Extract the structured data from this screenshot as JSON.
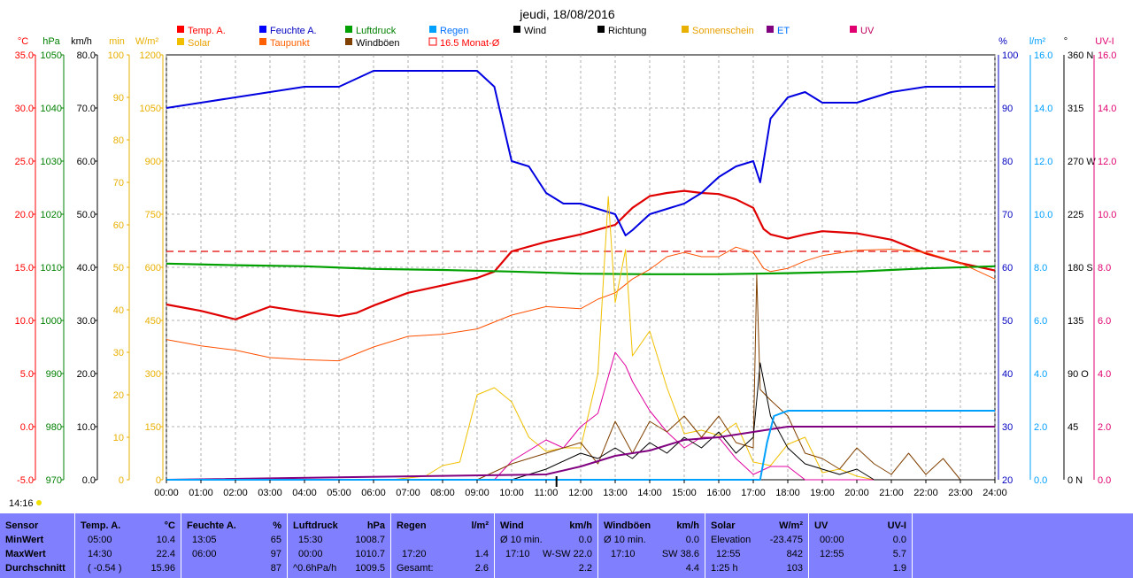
{
  "chart_data": {
    "type": "line",
    "title": "jeudi, 18/08/2016",
    "x_ticks": [
      "00:00",
      "01:00",
      "02:00",
      "03:00",
      "04:00",
      "05:00",
      "06:00",
      "07:00",
      "08:00",
      "09:00",
      "10:00",
      "11:00",
      "12:00",
      "13:00",
      "14:00",
      "15:00",
      "16:00",
      "17:00",
      "18:00",
      "19:00",
      "20:00",
      "21:00",
      "22:00",
      "23:00",
      "24:00"
    ],
    "left_axes": [
      {
        "unit": "°C",
        "color": "#ff0000",
        "ticks": [
          "35.0",
          "30.0",
          "25.0",
          "20.0",
          "15.0",
          "10.0",
          "5.0",
          "0.0",
          "-5.0"
        ]
      },
      {
        "unit": "hPa",
        "color": "#008000",
        "ticks": [
          "1050",
          "1040",
          "1030",
          "1020",
          "1010",
          "1000",
          "990",
          "980",
          "970"
        ]
      },
      {
        "unit": "km/h",
        "color": "#000000",
        "ticks": [
          "80.0",
          "70.0",
          "60.0",
          "50.0",
          "40.0",
          "30.0",
          "20.0",
          "10.0",
          "0.0"
        ]
      },
      {
        "unit": "min",
        "color": "#e8b000",
        "ticks": [
          "100",
          "90",
          "80",
          "70",
          "60",
          "50",
          "40",
          "30",
          "20",
          "10",
          "0"
        ]
      },
      {
        "unit": "W/m²",
        "color": "#e8b000",
        "ticks": [
          "1200",
          "1050",
          "900",
          "750",
          "600",
          "450",
          "300",
          "150",
          "0"
        ]
      }
    ],
    "right_axes": [
      {
        "unit": "%",
        "color": "#0000c0",
        "ticks": [
          "100",
          "90",
          "80",
          "70",
          "60",
          "50",
          "40",
          "30",
          "20"
        ]
      },
      {
        "unit": "l/m²",
        "color": "#00a0ff",
        "ticks": [
          "16.0",
          "14.0",
          "12.0",
          "10.0",
          "8.0",
          "6.0",
          "4.0",
          "2.0",
          "0.0"
        ]
      },
      {
        "unit": "°",
        "color": "#000000",
        "ticks": [
          "360 N",
          "315",
          "270 W",
          "225",
          "180 S",
          "135",
          "90 O",
          "45",
          "0 N"
        ]
      },
      {
        "unit": "UV-I",
        "color": "#e00070",
        "ticks": [
          "16.0",
          "14.0",
          "12.0",
          "10.0",
          "8.0",
          "6.0",
          "4.0",
          "2.0",
          "0.0"
        ]
      }
    ],
    "legend": [
      {
        "label": "Temp. A.",
        "color": "#ff0000"
      },
      {
        "label": "Feuchte A.",
        "color": "#0000ff"
      },
      {
        "label": "Luftdruck",
        "color": "#00a000"
      },
      {
        "label": "Regen",
        "color": "#00a0ff"
      },
      {
        "label": "Wind",
        "color": "#000000"
      },
      {
        "label": "Richtung",
        "color": "#000000"
      },
      {
        "label": "Sonnenschein",
        "color": "#e8b000"
      },
      {
        "label": "ET",
        "color": "#800080"
      },
      {
        "label": "UV",
        "color": "#e00070"
      },
      {
        "label": "Solar",
        "color": "#f0c000"
      },
      {
        "label": "Taupunkt",
        "color": "#ff6000"
      },
      {
        "label": "Windböen",
        "color": "#804000"
      },
      {
        "label": "16.5 Monat-Ø",
        "color": "#ff0000"
      }
    ],
    "monthly_avg_temp": 16.5,
    "current_time": "14:16",
    "series": [
      {
        "name": "Temp. A.",
        "unit": "°C",
        "x": [
          0,
          1,
          2,
          3,
          4,
          5,
          5.5,
          6,
          7,
          8,
          9,
          9.5,
          10,
          11,
          12,
          13,
          13.5,
          14,
          14.5,
          15,
          15.5,
          16,
          16.5,
          17,
          17.3,
          17.5,
          18,
          18.5,
          19,
          19.5,
          20,
          21,
          22,
          23,
          24
        ],
        "y": [
          11.5,
          10.9,
          10.1,
          11.3,
          10.8,
          10.4,
          10.7,
          11.4,
          12.6,
          13.3,
          14.0,
          14.6,
          16.5,
          17.4,
          18.1,
          19.0,
          20.6,
          21.7,
          22.0,
          22.2,
          22.0,
          21.9,
          21.4,
          20.6,
          18.6,
          18.1,
          17.7,
          18.1,
          18.4,
          18.3,
          18.2,
          17.6,
          16.3,
          15.4,
          14.7
        ]
      },
      {
        "name": "Feuchte A.",
        "unit": "%",
        "x": [
          0,
          1,
          2,
          3,
          4,
          5,
          6,
          7,
          8,
          9,
          9.5,
          10,
          10.5,
          11,
          11.5,
          12,
          12.5,
          13,
          13.3,
          13.5,
          14,
          14.5,
          15,
          15.5,
          16,
          16.5,
          17,
          17.2,
          17.5,
          18,
          18.5,
          19,
          20,
          21,
          22,
          23,
          24
        ],
        "y": [
          90,
          91,
          92,
          93,
          94,
          94,
          97,
          97,
          97,
          97,
          94,
          80,
          79,
          74,
          72,
          72,
          71,
          70,
          66,
          67,
          70,
          71,
          72,
          74,
          77,
          79,
          80,
          76,
          88,
          92,
          93,
          91,
          91,
          93,
          94,
          94,
          94
        ]
      },
      {
        "name": "Luftdruck",
        "unit": "hPa",
        "x": [
          0,
          2,
          4,
          6,
          8,
          10,
          12,
          14,
          16,
          18,
          20,
          22,
          24
        ],
        "y": [
          1010.7,
          1010.4,
          1010.2,
          1009.7,
          1009.5,
          1009.2,
          1008.8,
          1008.7,
          1008.7,
          1008.9,
          1009.2,
          1009.8,
          1010.2
        ]
      },
      {
        "name": "Taupunkt",
        "unit": "°C",
        "x": [
          0,
          1,
          2,
          3,
          4,
          5,
          6,
          7,
          8,
          9,
          10,
          11,
          12,
          12.5,
          13,
          13.5,
          14,
          14.5,
          15,
          15.5,
          16,
          16.5,
          17,
          17.3,
          17.5,
          18,
          18.5,
          19,
          20,
          21,
          22,
          23,
          24
        ],
        "y": [
          8.2,
          7.6,
          7.2,
          6.5,
          6.3,
          6.2,
          7.5,
          8.5,
          8.7,
          9.2,
          10.5,
          11.3,
          11.1,
          12.0,
          12.6,
          13.9,
          14.8,
          16.0,
          16.4,
          16.0,
          16.0,
          16.9,
          16.4,
          14.9,
          14.6,
          14.9,
          15.6,
          16.1,
          16.6,
          16.7,
          16.4,
          15.4,
          13.9
        ]
      },
      {
        "name": "Solar",
        "unit": "W/m²",
        "x": [
          0,
          6.5,
          7.5,
          8,
          8.5,
          9,
          9.5,
          10,
          10.5,
          11,
          11.5,
          12,
          12.5,
          12.8,
          13,
          13.3,
          13.5,
          14,
          14.5,
          15,
          15.5,
          16,
          16.5,
          17,
          17.5,
          18,
          18.5,
          19,
          19.5,
          20,
          20.5,
          21,
          22,
          24
        ],
        "y": [
          0,
          0,
          10,
          40,
          50,
          240,
          260,
          220,
          120,
          80,
          90,
          90,
          300,
          800,
          500,
          650,
          350,
          420,
          260,
          130,
          140,
          125,
          160,
          50,
          40,
          100,
          120,
          20,
          30,
          10,
          0,
          0,
          0,
          0
        ]
      },
      {
        "name": "UV",
        "unit": "UV-I",
        "x": [
          0,
          9.5,
          10,
          10.5,
          11,
          11.5,
          12,
          12.5,
          13,
          13.3,
          13.5,
          14,
          14.5,
          15,
          15.5,
          16,
          16.5,
          17,
          17.5,
          18,
          18.5,
          19,
          24
        ],
        "y": [
          0,
          0,
          0.7,
          1.1,
          1.5,
          1.2,
          2.0,
          2.5,
          4.8,
          4.3,
          3.7,
          2.6,
          1.8,
          1.2,
          1.6,
          1.6,
          0.8,
          0.2,
          0.5,
          0.5,
          0,
          0,
          0
        ]
      },
      {
        "name": "Windböen",
        "unit": "km/h",
        "x": [
          0,
          6,
          7,
          8,
          9,
          10,
          11,
          12,
          12.5,
          13,
          13.5,
          14,
          14.5,
          15,
          15.5,
          16,
          16.5,
          17,
          17.1,
          17.2,
          17.5,
          18,
          18.5,
          19,
          19.5,
          20,
          20.5,
          21,
          21.5,
          22,
          22.5,
          23,
          24
        ],
        "y": [
          0,
          0,
          0,
          0,
          0,
          3,
          5,
          7,
          3,
          11,
          5,
          11,
          9,
          12,
          8,
          12,
          7,
          6,
          38.6,
          17,
          15,
          12,
          5,
          4,
          2,
          6,
          3,
          1,
          5,
          1,
          4,
          0,
          0
        ]
      },
      {
        "name": "Wind",
        "unit": "km/h",
        "x": [
          0,
          10,
          11,
          12,
          12.5,
          13,
          13.5,
          14,
          14.5,
          15,
          15.5,
          16,
          16.5,
          17,
          17.2,
          17.5,
          18,
          18.5,
          19,
          19.5,
          20,
          20.5,
          21,
          22,
          24
        ],
        "y": [
          0,
          0,
          2,
          5,
          4,
          6,
          4,
          7,
          5,
          8,
          6,
          9,
          5,
          8,
          22,
          12,
          6,
          3,
          2,
          1,
          2,
          0,
          0,
          0,
          0
        ]
      },
      {
        "name": "ET",
        "unit": "l/m²",
        "x": [
          0,
          11,
          12,
          13,
          14,
          15,
          16,
          17,
          18,
          19,
          20,
          24
        ],
        "y": [
          0,
          0.2,
          0.5,
          0.9,
          1.1,
          1.5,
          1.6,
          1.8,
          2.0,
          2.0,
          2.0,
          2.0
        ]
      },
      {
        "name": "Regen",
        "unit": "l/m²",
        "x": [
          0,
          17.2,
          17.4,
          17.6,
          18,
          24
        ],
        "y": [
          0,
          0,
          1.4,
          2.4,
          2.6,
          2.6
        ]
      }
    ]
  },
  "stats": {
    "sensor": {
      "header": "Sensor",
      "min": "MinWert",
      "max": "MaxWert",
      "avg": "Durchschnitt"
    },
    "temp": {
      "header": "Temp. A.",
      "unit": "°C",
      "min_time": "05:00",
      "min": "10.4",
      "max_time": "14:30",
      "max": "22.4",
      "avg_extra": "( -0.54 )",
      "avg": "15.96"
    },
    "humidity": {
      "header": "Feuchte A.",
      "unit": "%",
      "min_time": "13:05",
      "min": "65",
      "max_time": "06:00",
      "max": "97",
      "avg": "87"
    },
    "pressure": {
      "header": "Luftdruck",
      "unit": "hPa",
      "min_time": "15:30",
      "min": "1008.7",
      "max_time": "00:00",
      "max": "1010.7",
      "avg_extra": "^0.6hPa/h",
      "avg": "1009.5"
    },
    "rain": {
      "header": "Regen",
      "unit": "l/m²",
      "row2_time": "17:20",
      "row2": "1.4",
      "avg_label": "Gesamt:",
      "avg": "2.6"
    },
    "wind": {
      "header": "Wind",
      "unit": "km/h",
      "row1_label": "Ø 10 min.",
      "row1": "0.0",
      "row2_time": "17:10",
      "row2": "W-SW 22.0",
      "avg": "2.2"
    },
    "gust": {
      "header": "Windböen",
      "unit": "km/h",
      "row1_label": "Ø 10 min.",
      "row1": "0.0",
      "row2_time": "17:10",
      "row2": "SW 38.6",
      "avg": "4.4"
    },
    "solar": {
      "header": "Solar",
      "unit": "W/m²",
      "row1_label": "Elevation",
      "row1": "-23.475",
      "row2_time": "12:55",
      "row2": "842",
      "avg_label": "1:25 h",
      "avg": "103"
    },
    "uv": {
      "header": "UV",
      "unit": "UV-I",
      "row1_time": "00:00",
      "row1": "0.0",
      "row2_time": "12:55",
      "row2": "5.7",
      "avg": "1.9"
    }
  }
}
